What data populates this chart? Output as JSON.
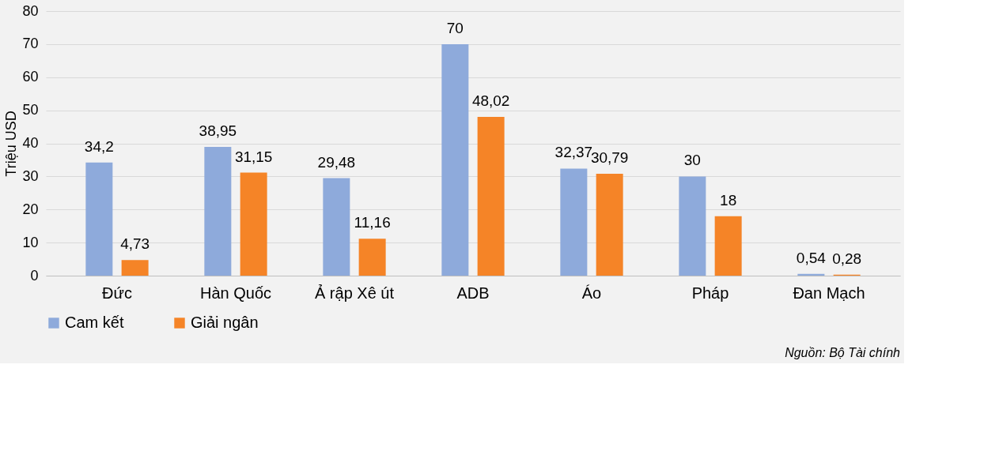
{
  "chart_data": {
    "type": "bar",
    "ylabel": "Triệu USD",
    "categories": [
      "Đức",
      "Hàn Quốc",
      "Ả rập Xê út",
      "ADB",
      "Áo",
      "Pháp",
      "Đan Mạch"
    ],
    "series": [
      {
        "name": "Cam kết",
        "color": "#8eaadb",
        "values": [
          34.2,
          38.95,
          29.48,
          70,
          32.37,
          30,
          0.54
        ],
        "value_labels": [
          "34,2",
          "38,95",
          "29,48",
          "70",
          "32,37",
          "30",
          "0,54"
        ]
      },
      {
        "name": "Giải ngân",
        "color": "#f58427",
        "values": [
          4.73,
          31.15,
          11.16,
          48.02,
          30.79,
          18,
          0.28
        ],
        "value_labels": [
          "4,73",
          "31,15",
          "11,16",
          "48,02",
          "30,79",
          "18",
          "0,28"
        ]
      }
    ],
    "ylim": [
      0,
      80
    ],
    "yticks": [
      0,
      10,
      20,
      30,
      40,
      50,
      60,
      70,
      80
    ],
    "grid": "y",
    "legend": "bottom",
    "annotations": [
      "Nguồn: Bộ Tài chính"
    ]
  }
}
